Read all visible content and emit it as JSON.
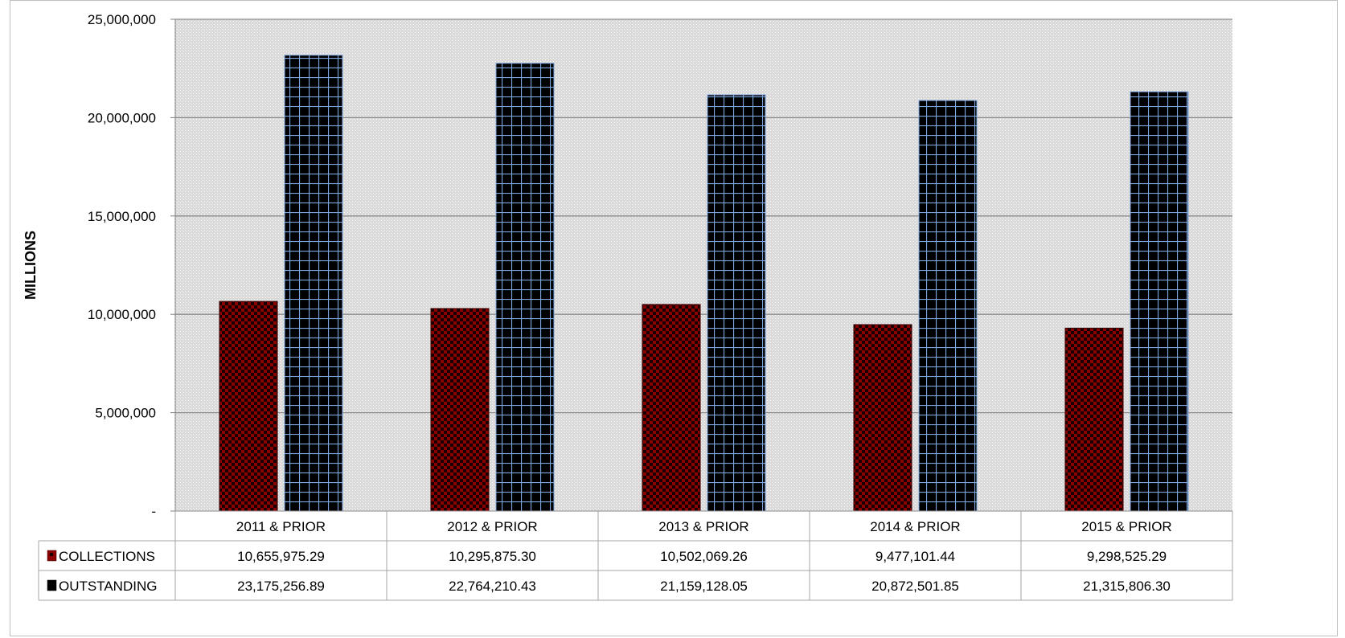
{
  "chart_data": {
    "type": "bar",
    "title": "",
    "xlabel": "",
    "ylabel": "MILLIONS",
    "ylim": [
      0,
      25000000
    ],
    "yticks": [
      0,
      5000000,
      10000000,
      15000000,
      20000000,
      25000000
    ],
    "ytick_labels": [
      "-",
      "5,000,000",
      "10,000,000",
      "15,000,000",
      "20,000,000",
      "25,000,000"
    ],
    "grid": true,
    "legend": "data-table",
    "categories": [
      "2011 & PRIOR",
      "2012 & PRIOR",
      "2013 & PRIOR",
      "2014 & PRIOR",
      "2015 & PRIOR"
    ],
    "series": [
      {
        "name": "COLLECTIONS",
        "color": "#8b0000",
        "values": [
          10655975.29,
          10295875.3,
          10502069.26,
          9477101.44,
          9298525.29
        ],
        "value_labels": [
          "10,655,975.29",
          "10,295,875.30",
          "10,502,069.26",
          "9,477,101.44",
          "9,298,525.29"
        ]
      },
      {
        "name": "OUTSTANDING",
        "color": "#000000",
        "values": [
          23175256.89,
          22764210.43,
          21159128.05,
          20872501.85,
          21315806.3
        ],
        "value_labels": [
          "23,175,256.89",
          "22,764,210.43",
          "21,159,128.05",
          "20,872,501.85",
          "21,315,806.30"
        ]
      }
    ]
  }
}
